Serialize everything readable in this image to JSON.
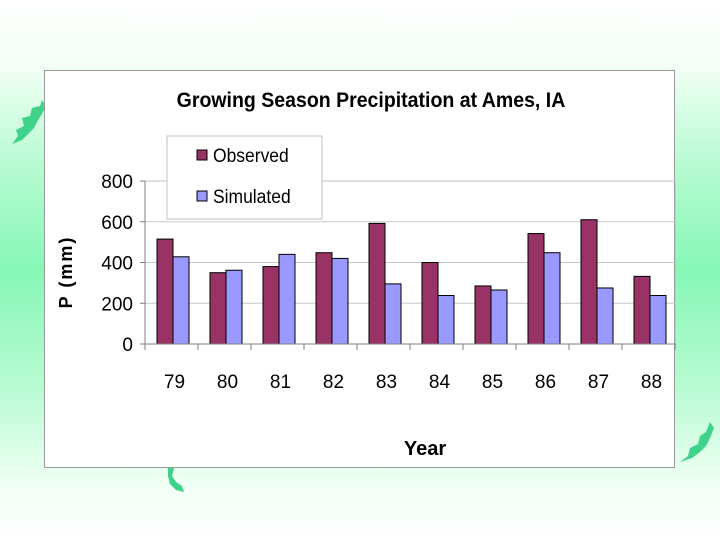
{
  "colors": {
    "observed": "#993366",
    "simulated": "#9999ff",
    "background_accent": "#86f7b5"
  },
  "icons": {
    "decor_left": "leaf-shape-icon",
    "decor_bottom": "leaf-shape-icon",
    "decor_right": "leaf-shape-icon"
  },
  "chart_data": {
    "type": "bar",
    "title": "Growing Season Precipitation at Ames, IA",
    "xlabel": "Year",
    "ylabel": "P (mm)",
    "categories": [
      "79",
      "80",
      "81",
      "82",
      "83",
      "84",
      "85",
      "86",
      "87",
      "88"
    ],
    "series": [
      {
        "name": "Observed",
        "values": [
          515,
          350,
          380,
          448,
          592,
          400,
          285,
          542,
          610,
          332
        ]
      },
      {
        "name": "Simulated",
        "values": [
          428,
          362,
          440,
          420,
          295,
          238,
          265,
          448,
          275,
          238
        ]
      }
    ],
    "yticks": [
      "0",
      "200",
      "400",
      "600",
      "800"
    ],
    "ylim": [
      0,
      800
    ],
    "grid": true,
    "legend_position": "top-left"
  }
}
